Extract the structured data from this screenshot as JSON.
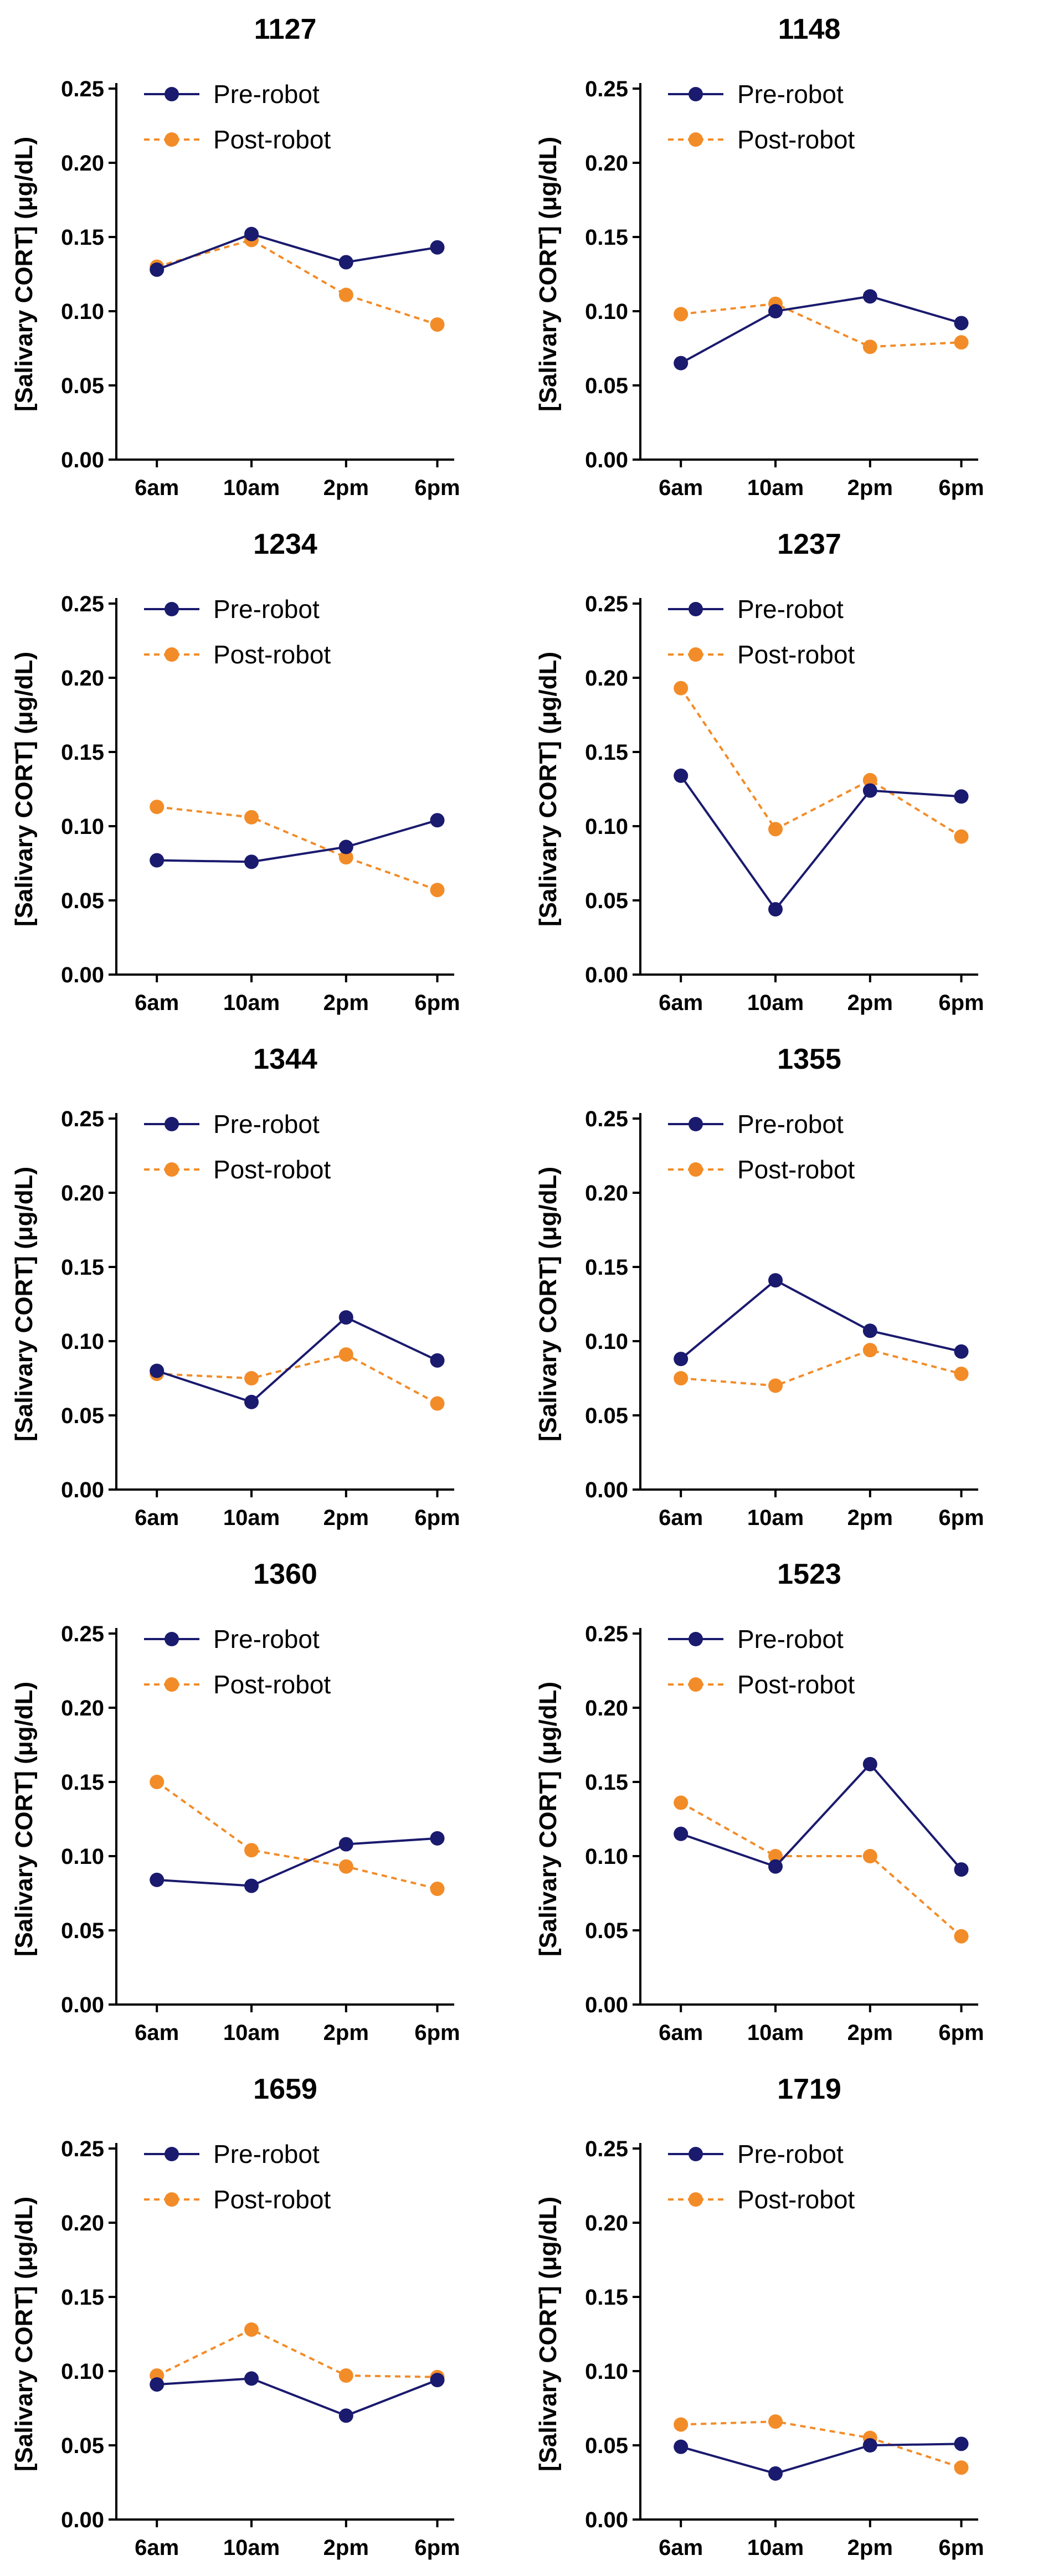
{
  "colors": {
    "pre": "#1a1a6e",
    "post": "#f28c28",
    "axis": "#000000"
  },
  "chart_data": [
    {
      "type": "line",
      "title": "1127",
      "ylabel": "[Salivary CORT] (μg/dL)",
      "xlabel": "",
      "categories": [
        "6am",
        "10am",
        "2pm",
        "6pm"
      ],
      "yticks": [
        "0.00",
        "0.05",
        "0.10",
        "0.15",
        "0.20",
        "0.25"
      ],
      "ylim": [
        0,
        0.25
      ],
      "series": [
        {
          "name": "Pre-robot",
          "values": [
            0.128,
            0.152,
            0.133,
            0.143
          ]
        },
        {
          "name": "Post-robot",
          "values": [
            0.13,
            0.148,
            0.111,
            0.091
          ]
        }
      ]
    },
    {
      "type": "line",
      "title": "1148",
      "ylabel": "[Salivary CORT] (μg/dL)",
      "xlabel": "",
      "categories": [
        "6am",
        "10am",
        "2pm",
        "6pm"
      ],
      "yticks": [
        "0.00",
        "0.05",
        "0.10",
        "0.15",
        "0.20",
        "0.25"
      ],
      "ylim": [
        0,
        0.25
      ],
      "series": [
        {
          "name": "Pre-robot",
          "values": [
            0.065,
            0.1,
            0.11,
            0.092
          ]
        },
        {
          "name": "Post-robot",
          "values": [
            0.098,
            0.105,
            0.076,
            0.079
          ]
        }
      ]
    },
    {
      "type": "line",
      "title": "1234",
      "ylabel": "[Salivary CORT] (μg/dL)",
      "xlabel": "",
      "categories": [
        "6am",
        "10am",
        "2pm",
        "6pm"
      ],
      "yticks": [
        "0.00",
        "0.05",
        "0.10",
        "0.15",
        "0.20",
        "0.25"
      ],
      "ylim": [
        0,
        0.25
      ],
      "series": [
        {
          "name": "Pre-robot",
          "values": [
            0.077,
            0.076,
            0.086,
            0.104
          ]
        },
        {
          "name": "Post-robot",
          "values": [
            0.113,
            0.106,
            0.079,
            0.057
          ]
        }
      ]
    },
    {
      "type": "line",
      "title": "1237",
      "ylabel": "[Salivary CORT] (μg/dL)",
      "xlabel": "",
      "categories": [
        "6am",
        "10am",
        "2pm",
        "6pm"
      ],
      "yticks": [
        "0.00",
        "0.05",
        "0.10",
        "0.15",
        "0.20",
        "0.25"
      ],
      "ylim": [
        0,
        0.25
      ],
      "series": [
        {
          "name": "Pre-robot",
          "values": [
            0.134,
            0.044,
            0.124,
            0.12
          ]
        },
        {
          "name": "Post-robot",
          "values": [
            0.193,
            0.098,
            0.131,
            0.093
          ]
        }
      ]
    },
    {
      "type": "line",
      "title": "1344",
      "ylabel": "[Salivary CORT] (μg/dL)",
      "xlabel": "",
      "categories": [
        "6am",
        "10am",
        "2pm",
        "6pm"
      ],
      "yticks": [
        "0.00",
        "0.05",
        "0.10",
        "0.15",
        "0.20",
        "0.25"
      ],
      "ylim": [
        0,
        0.25
      ],
      "series": [
        {
          "name": "Pre-robot",
          "values": [
            0.08,
            0.059,
            0.116,
            0.087
          ]
        },
        {
          "name": "Post-robot",
          "values": [
            0.078,
            0.075,
            0.091,
            0.058
          ]
        }
      ]
    },
    {
      "type": "line",
      "title": "1355",
      "ylabel": "[Salivary CORT] (μg/dL)",
      "xlabel": "",
      "categories": [
        "6am",
        "10am",
        "2pm",
        "6pm"
      ],
      "yticks": [
        "0.00",
        "0.05",
        "0.10",
        "0.15",
        "0.20",
        "0.25"
      ],
      "ylim": [
        0,
        0.25
      ],
      "series": [
        {
          "name": "Pre-robot",
          "values": [
            0.088,
            0.141,
            0.107,
            0.093
          ]
        },
        {
          "name": "Post-robot",
          "values": [
            0.075,
            0.07,
            0.094,
            0.078
          ]
        }
      ]
    },
    {
      "type": "line",
      "title": "1360",
      "ylabel": "[Salivary CORT] (μg/dL)",
      "xlabel": "",
      "categories": [
        "6am",
        "10am",
        "2pm",
        "6pm"
      ],
      "yticks": [
        "0.00",
        "0.05",
        "0.10",
        "0.15",
        "0.20",
        "0.25"
      ],
      "ylim": [
        0,
        0.25
      ],
      "series": [
        {
          "name": "Pre-robot",
          "values": [
            0.084,
            0.08,
            0.108,
            0.112
          ]
        },
        {
          "name": "Post-robot",
          "values": [
            0.15,
            0.104,
            0.093,
            0.078
          ]
        }
      ]
    },
    {
      "type": "line",
      "title": "1523",
      "ylabel": "[Salivary CORT] (μg/dL)",
      "xlabel": "",
      "categories": [
        "6am",
        "10am",
        "2pm",
        "6pm"
      ],
      "yticks": [
        "0.00",
        "0.05",
        "0.10",
        "0.15",
        "0.20",
        "0.25"
      ],
      "ylim": [
        0,
        0.25
      ],
      "series": [
        {
          "name": "Pre-robot",
          "values": [
            0.115,
            0.093,
            0.162,
            0.091
          ]
        },
        {
          "name": "Post-robot",
          "values": [
            0.136,
            0.1,
            0.1,
            0.046
          ]
        }
      ]
    },
    {
      "type": "line",
      "title": "1659",
      "ylabel": "[Salivary CORT] (μg/dL)",
      "xlabel": "",
      "categories": [
        "6am",
        "10am",
        "2pm",
        "6pm"
      ],
      "yticks": [
        "0.00",
        "0.05",
        "0.10",
        "0.15",
        "0.20",
        "0.25"
      ],
      "ylim": [
        0,
        0.25
      ],
      "series": [
        {
          "name": "Pre-robot",
          "values": [
            0.091,
            0.095,
            0.07,
            0.094
          ]
        },
        {
          "name": "Post-robot",
          "values": [
            0.097,
            0.128,
            0.097,
            0.096
          ]
        }
      ]
    },
    {
      "type": "line",
      "title": "1719",
      "ylabel": "[Salivary CORT] (μg/dL)",
      "xlabel": "",
      "categories": [
        "6am",
        "10am",
        "2pm",
        "6pm"
      ],
      "yticks": [
        "0.00",
        "0.05",
        "0.10",
        "0.15",
        "0.20",
        "0.25"
      ],
      "ylim": [
        0,
        0.25
      ],
      "series": [
        {
          "name": "Pre-robot",
          "values": [
            0.049,
            0.031,
            0.05,
            0.051
          ]
        },
        {
          "name": "Post-robot",
          "values": [
            0.064,
            0.066,
            0.055,
            0.035
          ]
        }
      ]
    }
  ]
}
